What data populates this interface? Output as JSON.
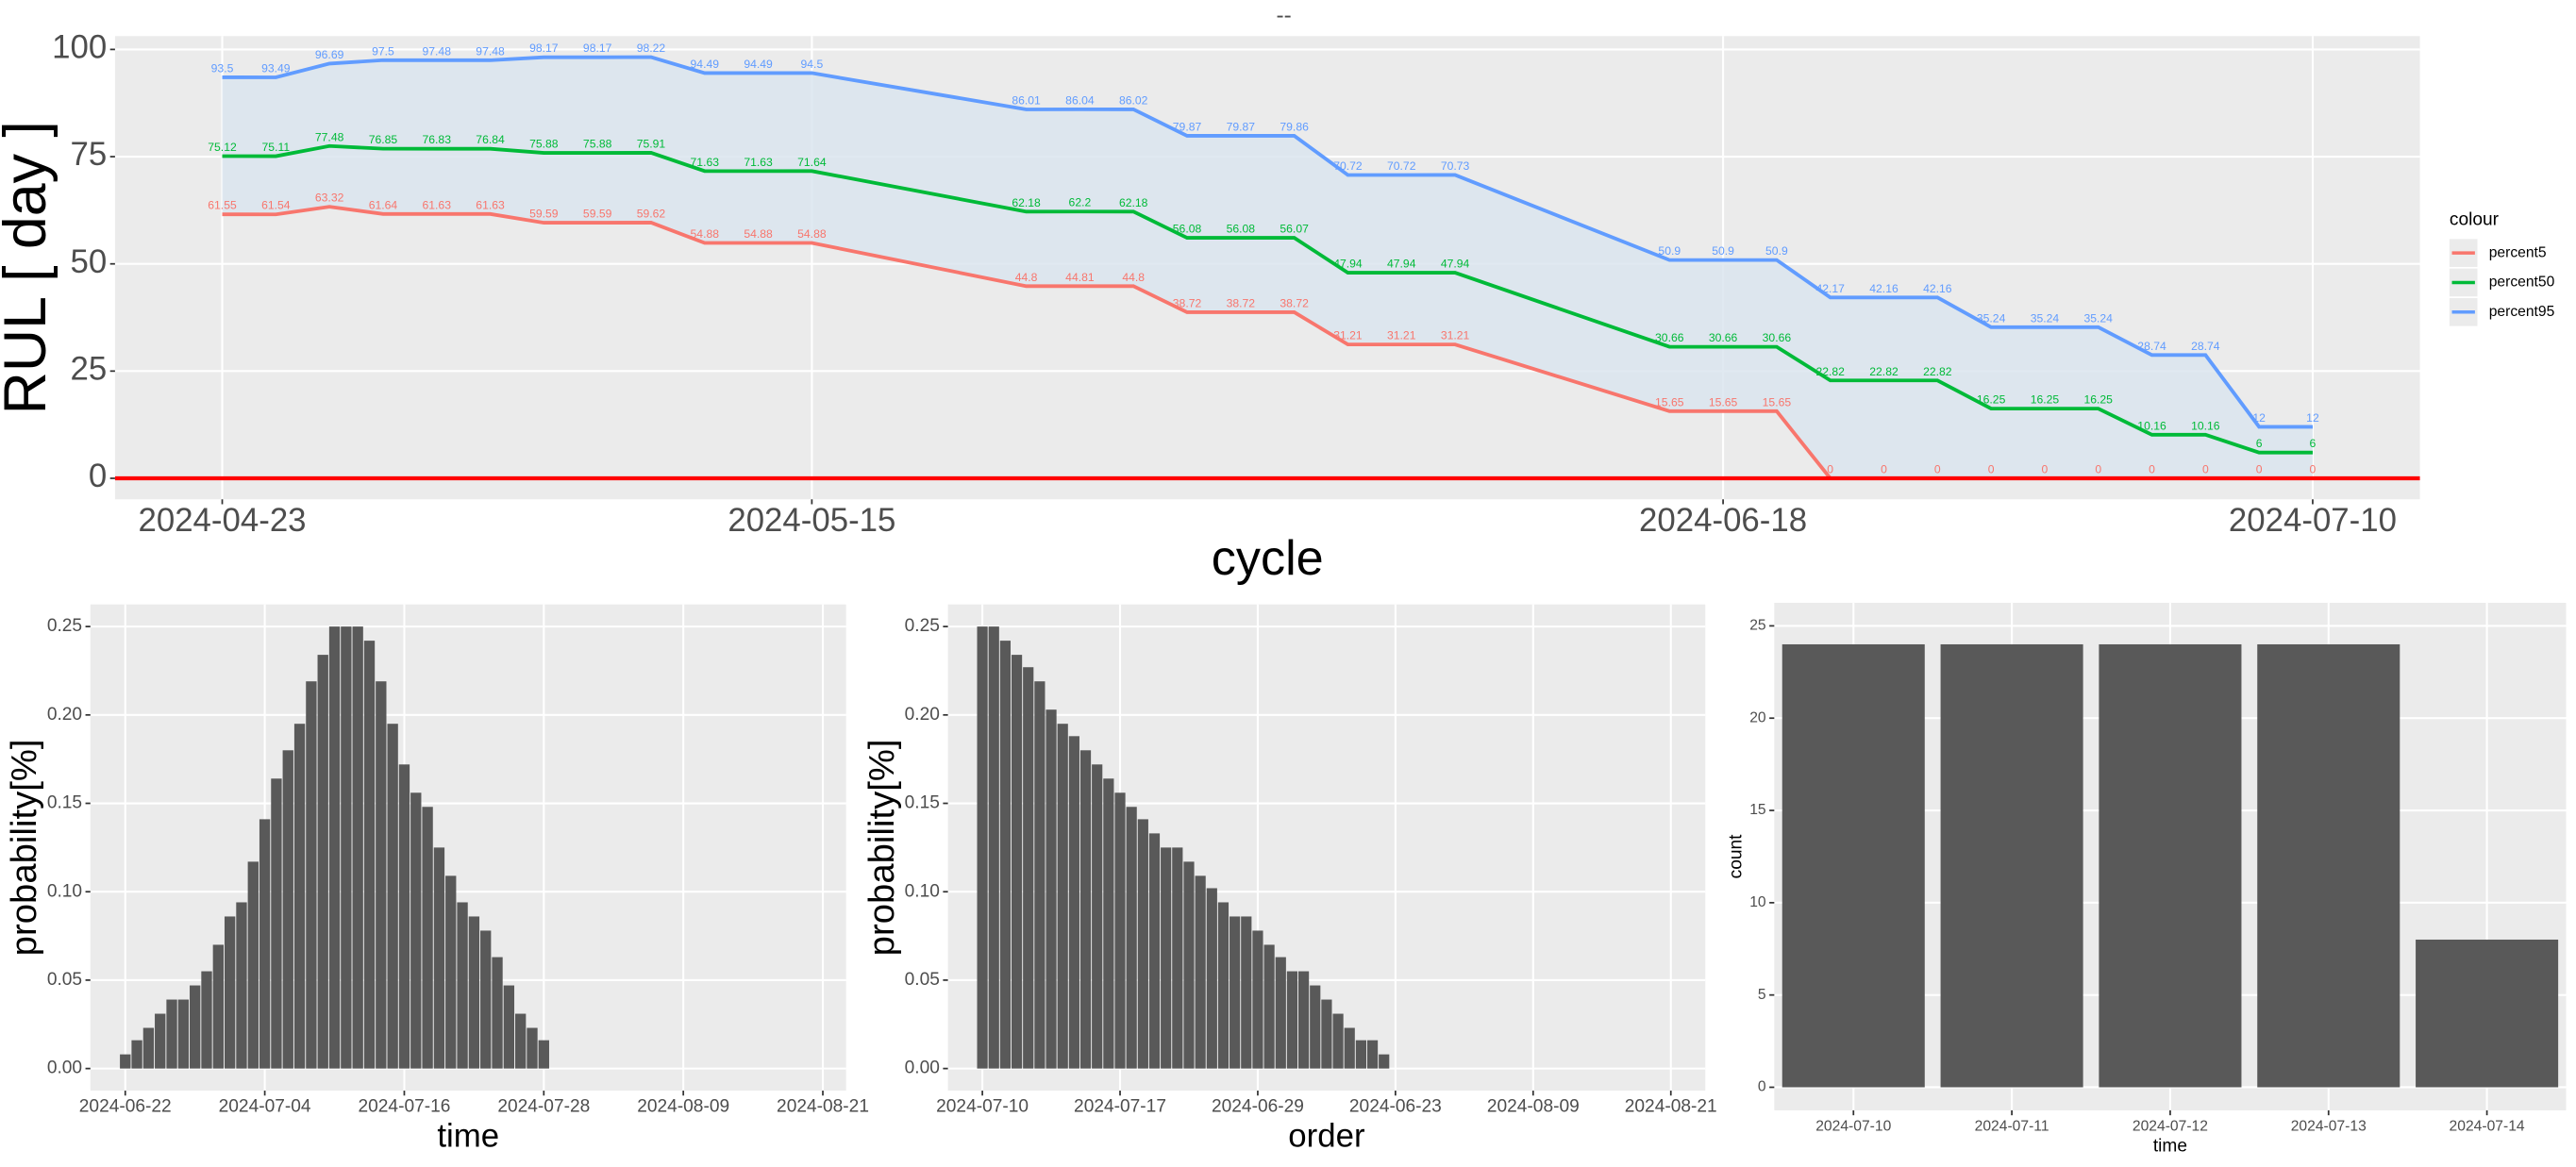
{
  "chart_data": [
    {
      "type": "line",
      "title": "--",
      "xlabel": "cycle",
      "ylabel": "RUL [ day ]",
      "x": [
        "2024-04-23",
        "2024-04-25",
        "2024-04-27",
        "2024-04-29",
        "2024-05-01",
        "2024-05-03",
        "2024-05-05",
        "2024-05-07",
        "2024-05-09",
        "2024-05-11",
        "2024-05-13",
        "2024-05-15",
        "2024-05-23",
        "2024-05-25",
        "2024-05-27",
        "2024-05-29",
        "2024-05-31",
        "2024-06-02",
        "2024-06-04",
        "2024-06-06",
        "2024-06-08",
        "2024-06-16",
        "2024-06-18",
        "2024-06-20",
        "2024-06-22",
        "2024-06-24",
        "2024-06-26",
        "2024-06-28",
        "2024-06-30",
        "2024-07-02",
        "2024-07-04",
        "2024-07-06",
        "2024-07-08",
        "2024-07-10"
      ],
      "series": [
        {
          "name": "percent5",
          "color": "#F8766D",
          "values": [
            61.55,
            61.54,
            63.32,
            61.64,
            61.63,
            61.63,
            59.59,
            59.59,
            59.62,
            54.88,
            54.88,
            54.88,
            44.8,
            44.81,
            44.8,
            38.72,
            38.72,
            38.72,
            31.21,
            31.21,
            31.21,
            15.65,
            15.65,
            15.65,
            0,
            0,
            0,
            0,
            0,
            0,
            0,
            0,
            0,
            0
          ]
        },
        {
          "name": "percent50",
          "color": "#00BA38",
          "values": [
            75.12,
            75.11,
            77.48,
            76.85,
            76.83,
            76.84,
            75.88,
            75.88,
            75.91,
            71.63,
            71.63,
            71.64,
            62.18,
            62.2,
            62.18,
            56.08,
            56.08,
            56.07,
            47.94,
            47.94,
            47.94,
            30.66,
            30.66,
            30.66,
            22.82,
            22.82,
            22.82,
            16.25,
            16.25,
            16.25,
            10.16,
            10.16,
            6,
            6
          ]
        },
        {
          "name": "percent95",
          "color": "#619CFF",
          "values": [
            93.5,
            93.49,
            96.69,
            97.5,
            97.48,
            97.48,
            98.17,
            98.17,
            98.22,
            94.49,
            94.49,
            94.5,
            86.01,
            86.04,
            86.02,
            79.87,
            79.87,
            79.86,
            70.72,
            70.72,
            70.73,
            50.9,
            50.9,
            50.9,
            42.17,
            42.16,
            42.16,
            35.24,
            35.24,
            35.24,
            28.74,
            28.74,
            12,
            12
          ]
        }
      ],
      "xlim": [
        "2024-04-19",
        "2024-07-14"
      ],
      "xticks": [
        "2024-04-23",
        "2024-05-15",
        "2024-06-18",
        "2024-07-10"
      ],
      "ylim": [
        -4.9,
        103.1
      ],
      "yticks": [
        0,
        25,
        50,
        75,
        100
      ],
      "grid": true,
      "data_labels": true,
      "ribbon_color": "#dae5ee",
      "hline": {
        "y": 0,
        "color": "#ff0000"
      },
      "legend": {
        "title": "colour",
        "position": "right"
      }
    },
    {
      "type": "bar",
      "xlabel": "time",
      "ylabel": "probability[%]",
      "x": [
        "2024-06-22",
        "2024-06-23",
        "2024-06-24",
        "2024-06-25",
        "2024-06-26",
        "2024-06-27",
        "2024-06-28",
        "2024-06-29",
        "2024-06-30",
        "2024-07-01",
        "2024-07-02",
        "2024-07-03",
        "2024-07-04",
        "2024-07-05",
        "2024-07-06",
        "2024-07-07",
        "2024-07-08",
        "2024-07-09",
        "2024-07-10",
        "2024-07-11",
        "2024-07-12",
        "2024-07-13",
        "2024-07-14",
        "2024-07-15",
        "2024-07-16",
        "2024-07-17",
        "2024-07-18",
        "2024-07-19",
        "2024-07-20",
        "2024-07-21",
        "2024-07-22",
        "2024-07-23",
        "2024-07-24",
        "2024-07-25",
        "2024-07-26",
        "2024-07-27",
        "2024-07-28"
      ],
      "values": [
        0.008,
        0.016,
        0.023,
        0.031,
        0.039,
        0.039,
        0.047,
        0.055,
        0.07,
        0.086,
        0.094,
        0.117,
        0.141,
        0.164,
        0.18,
        0.195,
        0.219,
        0.234,
        0.25,
        0.25,
        0.25,
        0.242,
        0.219,
        0.195,
        0.172,
        0.156,
        0.148,
        0.125,
        0.109,
        0.094,
        0.086,
        0.078,
        0.063,
        0.047,
        0.031,
        0.023,
        0.016
      ],
      "color": "#595959",
      "xlim": [
        "2024-06-19",
        "2024-08-23"
      ],
      "xticks": [
        "2024-06-22",
        "2024-07-04",
        "2024-07-16",
        "2024-07-28",
        "2024-08-09",
        "2024-08-21"
      ],
      "ylim": [
        -0.0125,
        0.2625
      ],
      "yticks": [
        {
          "value": 0,
          "label": "0.00"
        },
        {
          "value": 0.05,
          "label": "0.05"
        },
        {
          "value": 0.1,
          "label": "0.10"
        },
        {
          "value": 0.15,
          "label": "0.15"
        },
        {
          "value": 0.2,
          "label": "0.20"
        },
        {
          "value": 0.25,
          "label": "0.25"
        }
      ],
      "grid": true
    },
    {
      "type": "bar",
      "xlabel": "order",
      "ylabel": "probability[%]",
      "x": [
        0,
        1,
        2,
        3,
        4,
        5,
        6,
        7,
        8,
        9,
        10,
        11,
        12,
        13,
        14,
        15,
        16,
        17,
        18,
        19,
        20,
        21,
        22,
        23,
        24,
        25,
        26,
        27,
        28,
        29,
        30,
        31,
        32,
        33,
        34,
        35
      ],
      "values": [
        0.25,
        0.25,
        0.242,
        0.234,
        0.227,
        0.219,
        0.203,
        0.195,
        0.188,
        0.18,
        0.172,
        0.164,
        0.156,
        0.148,
        0.141,
        0.133,
        0.125,
        0.125,
        0.117,
        0.109,
        0.102,
        0.094,
        0.086,
        0.086,
        0.078,
        0.07,
        0.063,
        0.055,
        0.055,
        0.047,
        0.039,
        0.031,
        0.023,
        0.016,
        0.016,
        0.008
      ],
      "color": "#595959",
      "xlim": [
        -3,
        63
      ],
      "xticks": [
        {
          "value": 0,
          "label": "2024-07-10"
        },
        {
          "value": 12,
          "label": "2024-07-17"
        },
        {
          "value": 24,
          "label": "2024-06-29"
        },
        {
          "value": 36,
          "label": "2024-06-23"
        },
        {
          "value": 48,
          "label": "2024-08-09"
        },
        {
          "value": 60,
          "label": "2024-08-21"
        }
      ],
      "ylim": [
        -0.0125,
        0.2625
      ],
      "yticks": [
        {
          "value": 0,
          "label": "0.00"
        },
        {
          "value": 0.05,
          "label": "0.05"
        },
        {
          "value": 0.1,
          "label": "0.10"
        },
        {
          "value": 0.15,
          "label": "0.15"
        },
        {
          "value": 0.2,
          "label": "0.20"
        },
        {
          "value": 0.25,
          "label": "0.25"
        }
      ],
      "grid": true
    },
    {
      "type": "bar",
      "xlabel": "time",
      "ylabel": "count",
      "categories": [
        "2024-07-10",
        "2024-07-11",
        "2024-07-12",
        "2024-07-13",
        "2024-07-14"
      ],
      "values": [
        24,
        24,
        24,
        24,
        8
      ],
      "color": "#595959",
      "ylim": [
        -1.25,
        26.25
      ],
      "yticks": [
        0,
        5,
        10,
        15,
        20,
        25
      ],
      "grid": true
    }
  ]
}
